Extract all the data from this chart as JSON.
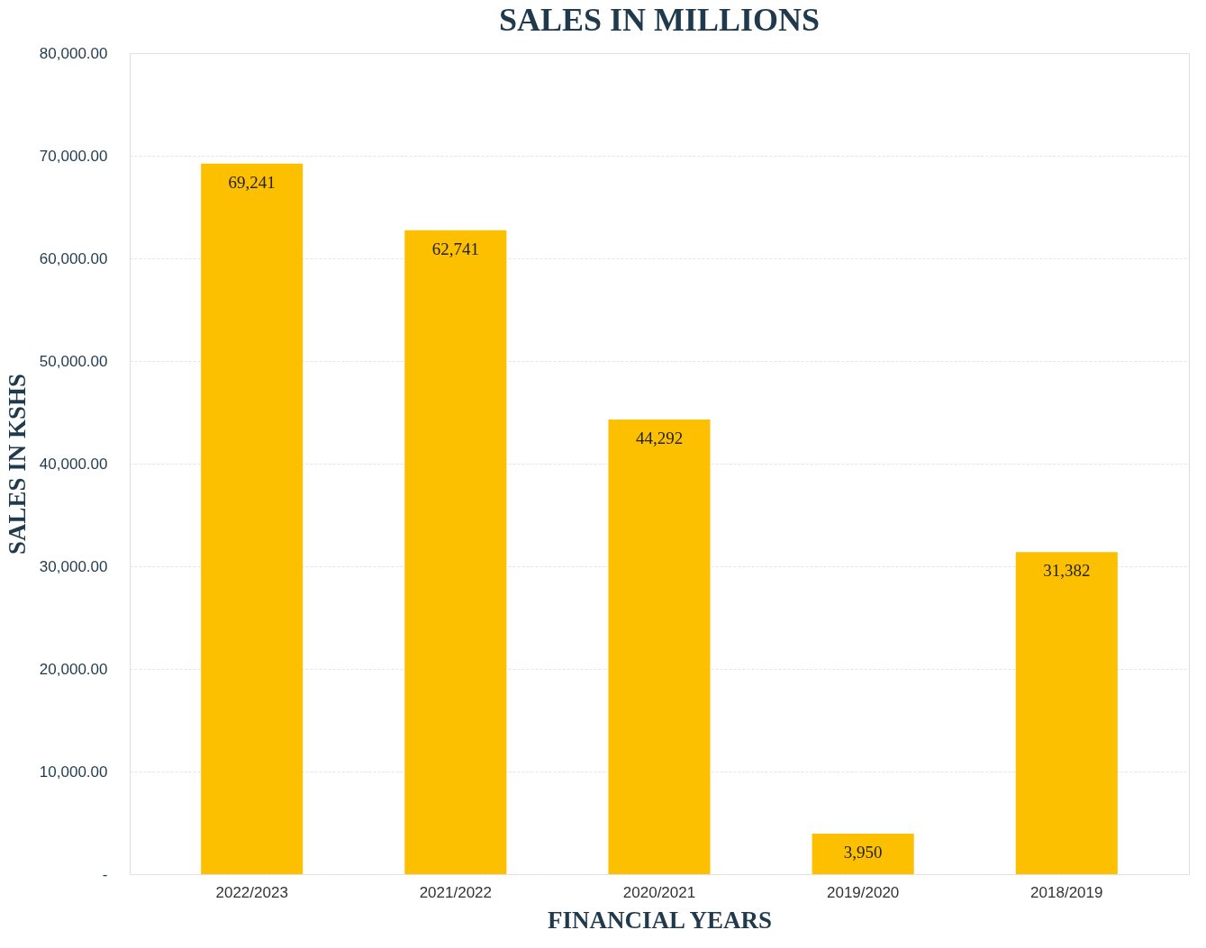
{
  "chart_data": {
    "type": "bar",
    "title": "SALES IN MILLIONS",
    "xlabel": "FINANCIAL YEARS",
    "ylabel": "SALES IN KSHS",
    "categories": [
      "2022/2023",
      "2021/2022",
      "2020/2021",
      "2019/2020",
      "2018/2019"
    ],
    "values": [
      69241,
      62741,
      44292,
      3950,
      31382
    ],
    "value_labels": [
      "69,241",
      "62,741",
      "44,292",
      "3,950",
      "31,382"
    ],
    "color": "#fdc000",
    "ylim": [
      0,
      80000
    ],
    "yticks": [
      {
        "value": 0,
        "label": "-"
      },
      {
        "value": 10000,
        "label": "10,000.00"
      },
      {
        "value": 20000,
        "label": "20,000.00"
      },
      {
        "value": 30000,
        "label": "30,000.00"
      },
      {
        "value": 40000,
        "label": "40,000.00"
      },
      {
        "value": 50000,
        "label": "50,000.00"
      },
      {
        "value": 60000,
        "label": "60,000.00"
      },
      {
        "value": 70000,
        "label": "70,000.00"
      },
      {
        "value": 80000,
        "label": "80,000.00"
      }
    ],
    "grid": "y"
  }
}
